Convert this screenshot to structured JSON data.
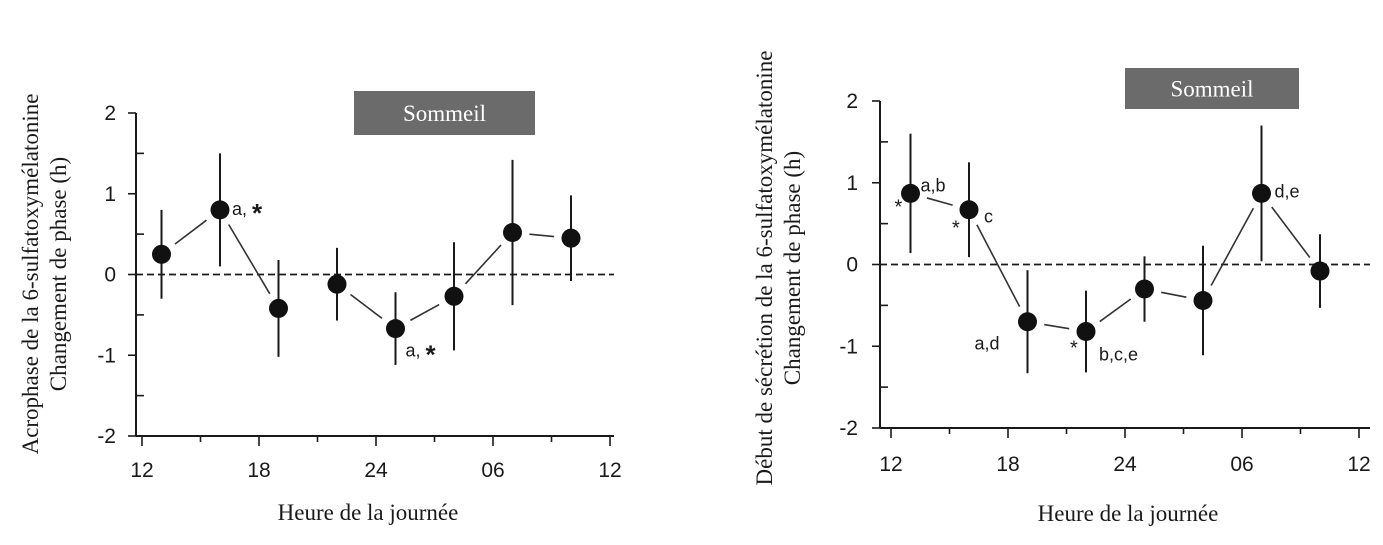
{
  "chart_data": [
    {
      "type": "scatter",
      "xlabel": "Heure de la journée",
      "ylabel_lines": [
        "Acrophase de la 6-sulfatoxymélatonine",
        "Changement de phase (h)"
      ],
      "x_ticks": [
        "12",
        "18",
        "24",
        "06",
        "12"
      ],
      "y_ticks": [
        "2",
        "1",
        "0",
        "-1",
        "-2"
      ],
      "ylim": [
        -2,
        2
      ],
      "xlim_hours": [
        12,
        36
      ],
      "reference_line": 0,
      "sleep_box": {
        "label": "Sommeil"
      },
      "points": [
        {
          "x": 13,
          "y": 0.25,
          "err": 0.55
        },
        {
          "x": 16,
          "y": 0.8,
          "err": 0.7,
          "label": "a,",
          "star": "*"
        },
        {
          "x": 19,
          "y": -0.42,
          "err": 0.6
        },
        {
          "x": 22,
          "y": -0.12,
          "err": 0.45
        },
        {
          "x": 25,
          "y": -0.67,
          "err": 0.45,
          "label": "a,",
          "star": "*"
        },
        {
          "x": 28,
          "y": -0.27,
          "err": 0.67
        },
        {
          "x": 31,
          "y": 0.52,
          "err": 0.9
        },
        {
          "x": 34,
          "y": 0.45,
          "err": 0.53
        }
      ],
      "connectors": [
        [
          0,
          1
        ],
        [
          1,
          2
        ],
        [
          3,
          4
        ],
        [
          4,
          5
        ],
        [
          5,
          6
        ],
        [
          6,
          7
        ]
      ]
    },
    {
      "type": "scatter",
      "xlabel": "Heure de la journée",
      "ylabel_lines": [
        "Début de sécrétion de la 6-sulfatoxymélatonine",
        "Changement de phase (h)"
      ],
      "x_ticks": [
        "12",
        "18",
        "24",
        "06",
        "12"
      ],
      "y_ticks": [
        "2",
        "1",
        "0",
        "-1",
        "-2"
      ],
      "ylim": [
        -2,
        2
      ],
      "xlim_hours": [
        12,
        36
      ],
      "reference_line": 0,
      "sleep_box": {
        "label": "Sommeil"
      },
      "points": [
        {
          "x": 13,
          "y": 0.87,
          "err": 0.73,
          "label": "a,b",
          "star": "*"
        },
        {
          "x": 16,
          "y": 0.67,
          "err": 0.58,
          "label": "c",
          "star": "*"
        },
        {
          "x": 19,
          "y": -0.7,
          "err": 0.63,
          "label": "a,d"
        },
        {
          "x": 22,
          "y": -0.82,
          "err": 0.5,
          "label": "b,c,e",
          "star": "*"
        },
        {
          "x": 25,
          "y": -0.3,
          "err": 0.4
        },
        {
          "x": 28,
          "y": -0.44,
          "err": 0.67
        },
        {
          "x": 31,
          "y": 0.87,
          "err": 0.83,
          "label": "d,e"
        },
        {
          "x": 34,
          "y": -0.08,
          "err": 0.45
        }
      ],
      "connectors": [
        [
          0,
          1
        ],
        [
          1,
          2
        ],
        [
          2,
          3
        ],
        [
          3,
          4
        ],
        [
          4,
          5
        ],
        [
          5,
          6
        ],
        [
          6,
          7
        ]
      ]
    }
  ]
}
